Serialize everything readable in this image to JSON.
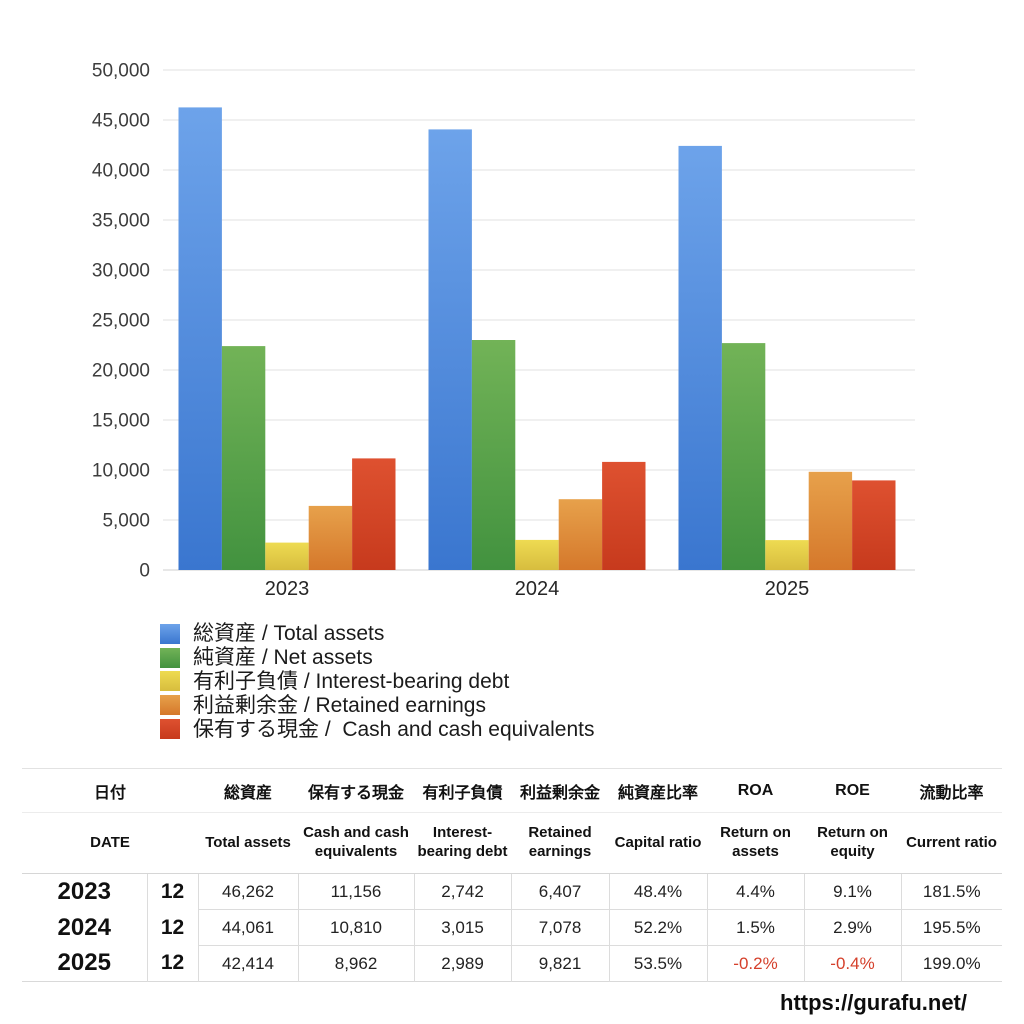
{
  "chart_data": {
    "type": "bar",
    "title": "",
    "xlabel": "",
    "ylabel": "",
    "categories": [
      "2023",
      "2024",
      "2025"
    ],
    "series": [
      {
        "key": "total-assets",
        "label": "総資産 / Total assets",
        "color_top": "#6da3ea",
        "color_bottom": "#3a76cf",
        "values": [
          46262,
          44061,
          42414
        ]
      },
      {
        "key": "net-assets",
        "label": "純資産 / Net assets",
        "color_top": "#72b357",
        "color_bottom": "#42923f",
        "values": [
          22391,
          23000,
          22692
        ]
      },
      {
        "key": "interest-bearing-debt",
        "label": "有利子負債 / Interest-bearing debt",
        "color_top": "#eedb52",
        "color_bottom": "#d7bd3e",
        "values": [
          2742,
          3015,
          2989
        ]
      },
      {
        "key": "retained-earnings",
        "label": "利益剰余金 / Retained earnings",
        "color_top": "#e7a14b",
        "color_bottom": "#d5782b",
        "values": [
          6407,
          7078,
          9821
        ]
      },
      {
        "key": "cash",
        "label": "保有する現金 /  Cash and cash equivalents",
        "color_top": "#de5130",
        "color_bottom": "#c73a1d",
        "values": [
          11156,
          10810,
          8962
        ]
      }
    ],
    "ylim": [
      0,
      50000
    ],
    "ytick_step": 5000,
    "ytick_labels": [
      "0",
      "5,000",
      "10,000",
      "15,000",
      "20,000",
      "25,000",
      "30,000",
      "35,000",
      "40,000",
      "45,000",
      "50,000"
    ],
    "grid": true,
    "legend_position": "bottom-left"
  },
  "table": {
    "date_header": {
      "ja": "日付",
      "en": "DATE"
    },
    "columns": [
      {
        "key": "total-assets",
        "ja": "総資産",
        "en": "Total assets"
      },
      {
        "key": "cash",
        "ja": "保有する現金",
        "en": "Cash and cash equivalents"
      },
      {
        "key": "debt",
        "ja": "有利子負債",
        "en": "Interest-bearing debt"
      },
      {
        "key": "retained",
        "ja": "利益剰余金",
        "en": "Retained earnings"
      },
      {
        "key": "capital-ratio",
        "ja": "純資産比率",
        "en": "Capital ratio"
      },
      {
        "key": "roa",
        "ja": "ROA",
        "en": "Return on assets"
      },
      {
        "key": "roe",
        "ja": "ROE",
        "en": "Return on equity"
      },
      {
        "key": "current-ratio",
        "ja": "流動比率",
        "en": "Current ratio"
      }
    ],
    "rows": [
      {
        "year": "2023",
        "month": "12",
        "cells": [
          "46,262",
          "11,156",
          "2,742",
          "6,407",
          "48.4%",
          "4.4%",
          "9.1%",
          "181.5%"
        ],
        "negative": []
      },
      {
        "year": "2024",
        "month": "12",
        "cells": [
          "44,061",
          "10,810",
          "3,015",
          "7,078",
          "52.2%",
          "1.5%",
          "2.9%",
          "195.5%"
        ],
        "negative": []
      },
      {
        "year": "2025",
        "month": "12",
        "cells": [
          "42,414",
          "8,962",
          "2,989",
          "9,821",
          "53.5%",
          "-0.2%",
          "-0.4%",
          "199.0%"
        ],
        "negative": [
          5,
          6
        ]
      }
    ],
    "negative_color": "#d5402b"
  },
  "footer": {
    "url": "https://gurafu.net/"
  }
}
